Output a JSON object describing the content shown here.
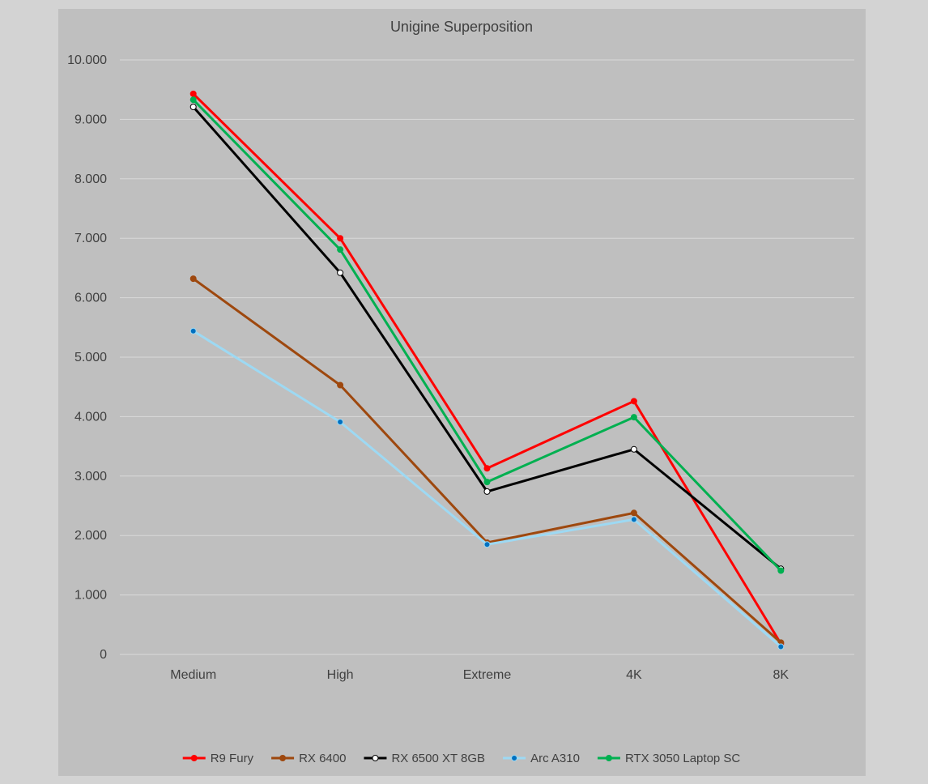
{
  "chart_data": {
    "type": "line",
    "title": "Unigine Superposition",
    "xlabel": "",
    "ylabel": "",
    "categories": [
      "Medium",
      "High",
      "Extreme",
      "4K",
      "8K"
    ],
    "ylim": [
      0,
      10000
    ],
    "yticks": [
      0,
      1000,
      2000,
      3000,
      4000,
      5000,
      6000,
      7000,
      8000,
      9000,
      10000
    ],
    "ytick_labels": [
      "0",
      "1.000",
      "2.000",
      "3.000",
      "4.000",
      "5.000",
      "6.000",
      "7.000",
      "8.000",
      "9.000",
      "10.000"
    ],
    "grid": true,
    "legend_position": "bottom",
    "series": [
      {
        "name": "R9 Fury",
        "color": "#ff0000",
        "marker": "#ff0000",
        "values": [
          9430,
          7000,
          3130,
          4260,
          180
        ]
      },
      {
        "name": "RX 6400",
        "color": "#9e480e",
        "marker": "#9e480e",
        "values": [
          6320,
          4530,
          1880,
          2380,
          200
        ]
      },
      {
        "name": "RX 6500 XT 8GB",
        "color": "#000000",
        "marker": "#ffffff",
        "values": [
          9210,
          6420,
          2740,
          3450,
          1440
        ]
      },
      {
        "name": "Arc A310",
        "color": "#9dd9f3",
        "marker": "#0070c0",
        "values": [
          5440,
          3910,
          1850,
          2270,
          130
        ]
      },
      {
        "name": "RTX 3050 Laptop SC",
        "color": "#00b050",
        "marker": "#00b050",
        "values": [
          9330,
          6810,
          2900,
          3990,
          1410
        ]
      }
    ]
  }
}
